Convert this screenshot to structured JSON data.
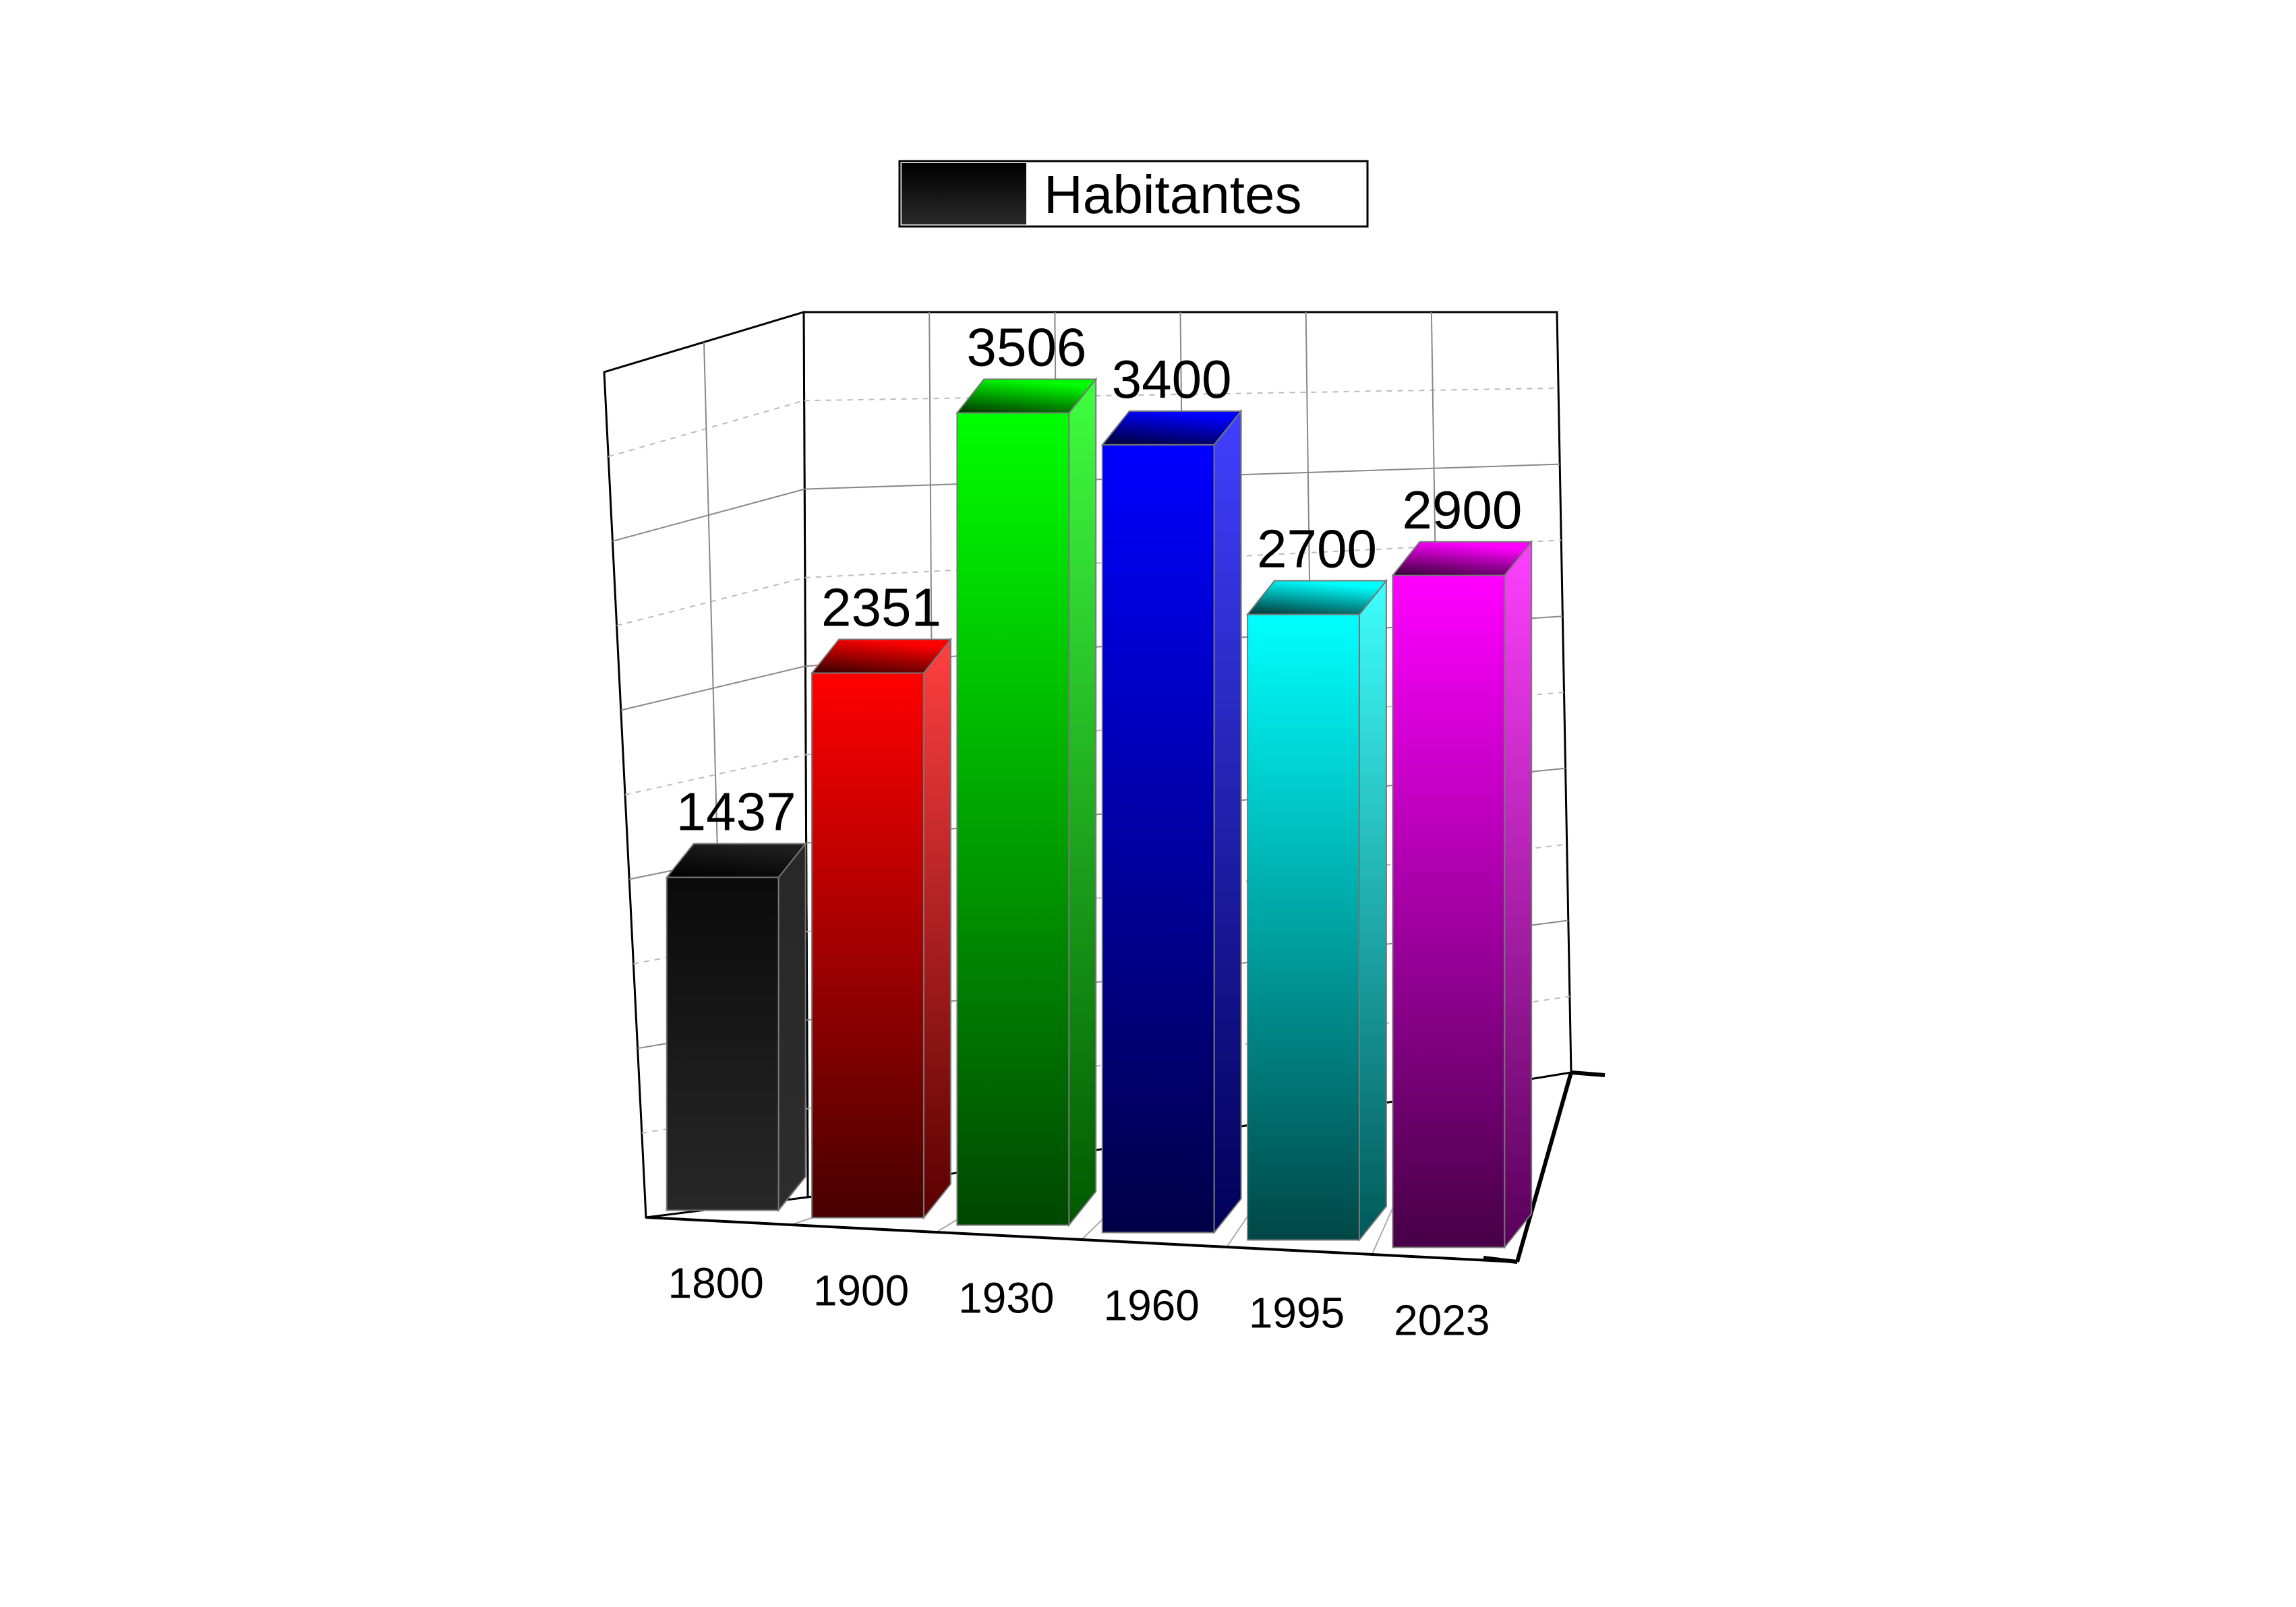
{
  "chart_data": {
    "type": "bar",
    "style": "3d",
    "categories": [
      "1800",
      "1900",
      "1930",
      "1960",
      "1995",
      "2023"
    ],
    "series": [
      {
        "name": "Habitantes",
        "values": [
          1437,
          2351,
          3506,
          3400,
          2700,
          2900
        ]
      }
    ],
    "bar_colors": [
      "#1c1c1c",
      "#ff0000",
      "#00ff00",
      "#0000ff",
      "#00ffff",
      "#ff00ff"
    ],
    "title": "",
    "xlabel": "",
    "ylabel": "",
    "ylim": [
      0,
      5000
    ],
    "legend": "top-center",
    "grid": true,
    "data_labels": true
  }
}
